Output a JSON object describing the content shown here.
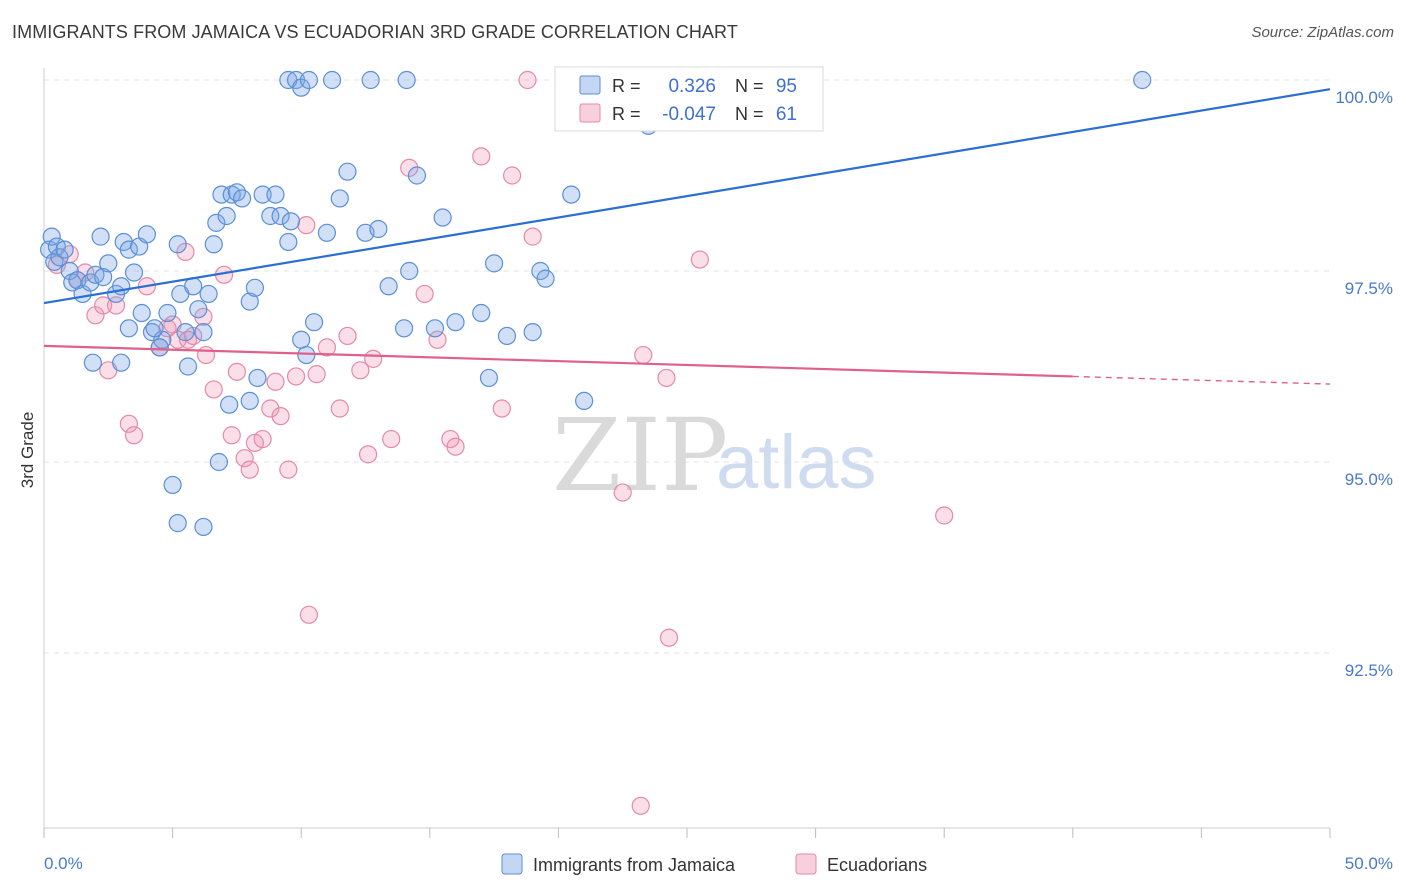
{
  "title": "IMMIGRANTS FROM JAMAICA VS ECUADORIAN 3RD GRADE CORRELATION CHART",
  "source": "Source: ZipAtlas.com",
  "watermark": {
    "part1": "ZIP",
    "part2": "atlas"
  },
  "colors": {
    "blue": "#5b8fd6",
    "blue_fill": "rgba(122,166,230,0.35)",
    "blue_line": "#2b6fd1",
    "pink": "#e58aa8",
    "pink_fill": "rgba(240,150,180,0.30)",
    "pink_line": "#e0608c",
    "tick_label": "#4a7ac7",
    "grid": "#e3e3e3"
  },
  "legend": {
    "r_label": "R =",
    "n_label": "N =",
    "rows": [
      {
        "r": "0.326",
        "n": "95",
        "color": "blue"
      },
      {
        "r": "-0.047",
        "n": "61",
        "color": "pink"
      }
    ]
  },
  "chart_data": {
    "type": "scatter",
    "title": "IMMIGRANTS FROM JAMAICA VS ECUADORIAN 3RD GRADE CORRELATION CHART",
    "xlabel": "",
    "ylabel": "3rd Grade",
    "xlim": [
      0,
      50
    ],
    "ylim": [
      90.2,
      100.4
    ],
    "x_tick_labels": [
      "0.0%",
      "50.0%"
    ],
    "y_ticks": [
      92.5,
      95.0,
      97.5,
      100.0
    ],
    "y_tick_labels": [
      "92.5%",
      "95.0%",
      "97.5%",
      "100.0%"
    ],
    "grid": true,
    "legend_position": "bottom-center",
    "series": [
      {
        "name": "Immigrants from Jamaica",
        "color": "blue",
        "trend": {
          "x": [
            0,
            50
          ],
          "y": [
            97.08,
            99.88
          ]
        },
        "points": [
          [
            0.2,
            97.78
          ],
          [
            0.3,
            97.95
          ],
          [
            0.4,
            97.62
          ],
          [
            0.5,
            97.82
          ],
          [
            0.6,
            97.68
          ],
          [
            0.8,
            97.78
          ],
          [
            1.0,
            97.5
          ],
          [
            1.1,
            97.35
          ],
          [
            1.3,
            97.38
          ],
          [
            1.5,
            97.2
          ],
          [
            1.8,
            97.35
          ],
          [
            2.0,
            97.45
          ],
          [
            2.2,
            97.95
          ],
          [
            2.3,
            97.42
          ],
          [
            2.5,
            97.6
          ],
          [
            2.8,
            97.2
          ],
          [
            3.0,
            97.3
          ],
          [
            3.1,
            97.88
          ],
          [
            3.3,
            97.78
          ],
          [
            3.5,
            97.48
          ],
          [
            3.7,
            97.82
          ],
          [
            4.0,
            97.98
          ],
          [
            4.2,
            96.7
          ],
          [
            4.6,
            96.6
          ],
          [
            1.9,
            96.3
          ],
          [
            3.0,
            96.3
          ],
          [
            3.3,
            96.75
          ],
          [
            3.8,
            96.95
          ],
          [
            4.3,
            96.75
          ],
          [
            4.5,
            96.5
          ],
          [
            4.8,
            96.95
          ],
          [
            5.2,
            97.85
          ],
          [
            5.3,
            97.2
          ],
          [
            5.5,
            96.7
          ],
          [
            5.6,
            96.25
          ],
          [
            5.8,
            97.3
          ],
          [
            6.0,
            97.0
          ],
          [
            6.2,
            96.7
          ],
          [
            6.4,
            97.2
          ],
          [
            6.6,
            97.85
          ],
          [
            6.7,
            98.13
          ],
          [
            6.9,
            98.5
          ],
          [
            7.1,
            98.22
          ],
          [
            7.3,
            98.5
          ],
          [
            7.5,
            98.53
          ],
          [
            7.7,
            98.45
          ],
          [
            8.0,
            97.1
          ],
          [
            8.2,
            97.28
          ],
          [
            8.5,
            98.5
          ],
          [
            8.8,
            98.22
          ],
          [
            9.0,
            98.5
          ],
          [
            9.2,
            98.22
          ],
          [
            9.5,
            97.88
          ],
          [
            9.6,
            98.15
          ],
          [
            10.0,
            96.6
          ],
          [
            10.2,
            96.4
          ],
          [
            10.5,
            96.83
          ],
          [
            11.0,
            98.0
          ],
          [
            11.5,
            98.45
          ],
          [
            11.8,
            98.8
          ],
          [
            12.5,
            98.0
          ],
          [
            13.0,
            98.05
          ],
          [
            13.4,
            97.3
          ],
          [
            14.0,
            96.75
          ],
          [
            14.2,
            97.5
          ],
          [
            14.5,
            98.75
          ],
          [
            15.2,
            96.75
          ],
          [
            15.5,
            98.2
          ],
          [
            16.0,
            96.83
          ],
          [
            17.0,
            96.95
          ],
          [
            17.3,
            96.1
          ],
          [
            17.5,
            97.6
          ],
          [
            18.0,
            96.65
          ],
          [
            19.0,
            96.7
          ],
          [
            19.3,
            97.5
          ],
          [
            19.5,
            97.4
          ],
          [
            20.5,
            98.5
          ],
          [
            21.0,
            95.8
          ],
          [
            22.0,
            100.0
          ],
          [
            23.5,
            99.4
          ],
          [
            9.5,
            100.0
          ],
          [
            9.8,
            100.0
          ],
          [
            10.0,
            99.9
          ],
          [
            10.3,
            100.0
          ],
          [
            11.2,
            100.0
          ],
          [
            12.7,
            100.0
          ],
          [
            14.1,
            100.0
          ],
          [
            5.0,
            94.7
          ],
          [
            5.2,
            94.2
          ],
          [
            6.2,
            94.15
          ],
          [
            6.8,
            95.0
          ],
          [
            7.2,
            95.75
          ],
          [
            8.0,
            95.8
          ],
          [
            8.3,
            96.1
          ],
          [
            42.7,
            100.0
          ]
        ]
      },
      {
        "name": "Ecuadorians",
        "color": "pink",
        "trend": {
          "x": [
            0,
            40
          ],
          "y": [
            96.52,
            96.12
          ]
        },
        "trend_dashed": {
          "x": [
            40,
            50
          ],
          "y": [
            96.12,
            96.02
          ]
        },
        "points": [
          [
            0.5,
            97.58
          ],
          [
            1.0,
            97.72
          ],
          [
            1.3,
            97.38
          ],
          [
            1.6,
            97.48
          ],
          [
            2.0,
            96.92
          ],
          [
            2.3,
            97.05
          ],
          [
            2.5,
            96.2
          ],
          [
            2.8,
            97.05
          ],
          [
            3.3,
            95.5
          ],
          [
            3.5,
            95.35
          ],
          [
            4.0,
            97.3
          ],
          [
            4.5,
            96.5
          ],
          [
            4.8,
            96.75
          ],
          [
            5.0,
            96.8
          ],
          [
            5.2,
            96.6
          ],
          [
            5.5,
            97.75
          ],
          [
            5.6,
            96.6
          ],
          [
            5.8,
            96.65
          ],
          [
            6.2,
            96.9
          ],
          [
            6.3,
            96.4
          ],
          [
            6.6,
            95.95
          ],
          [
            7.0,
            97.45
          ],
          [
            7.3,
            95.35
          ],
          [
            7.5,
            96.18
          ],
          [
            7.8,
            95.05
          ],
          [
            8.0,
            94.9
          ],
          [
            8.2,
            95.25
          ],
          [
            8.5,
            95.3
          ],
          [
            8.8,
            95.7
          ],
          [
            9.0,
            96.05
          ],
          [
            9.2,
            95.6
          ],
          [
            9.5,
            94.9
          ],
          [
            9.8,
            96.12
          ],
          [
            10.2,
            98.1
          ],
          [
            10.6,
            96.15
          ],
          [
            11.0,
            96.5
          ],
          [
            11.5,
            95.7
          ],
          [
            11.8,
            96.65
          ],
          [
            12.3,
            96.2
          ],
          [
            12.6,
            95.1
          ],
          [
            12.8,
            96.35
          ],
          [
            13.5,
            95.3
          ],
          [
            14.2,
            98.85
          ],
          [
            14.8,
            97.2
          ],
          [
            15.3,
            96.6
          ],
          [
            15.8,
            95.3
          ],
          [
            16.0,
            95.2
          ],
          [
            17.0,
            99.0
          ],
          [
            17.8,
            95.7
          ],
          [
            18.2,
            98.75
          ],
          [
            19.0,
            97.95
          ],
          [
            18.8,
            100.0
          ],
          [
            22.3,
            99.6
          ],
          [
            22.5,
            94.6
          ],
          [
            23.3,
            96.4
          ],
          [
            24.3,
            92.7
          ],
          [
            24.2,
            96.1
          ],
          [
            25.5,
            97.65
          ],
          [
            35.0,
            94.3
          ],
          [
            10.3,
            93.0
          ],
          [
            23.2,
            90.5
          ]
        ]
      }
    ]
  }
}
